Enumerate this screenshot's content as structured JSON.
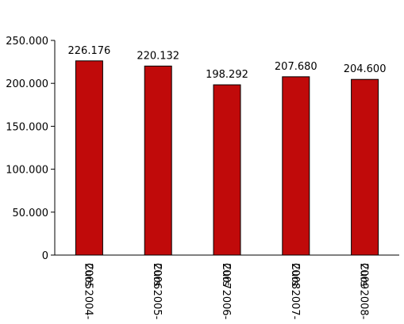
{
  "chart_data": {
    "type": "bar",
    "categories": [
      "Curs 2004-2005",
      "Curs 2005-2006",
      "Curs 2006-2007",
      "Curs 2007-2008",
      "Curs 2008-2009"
    ],
    "category_lines": [
      [
        "Curs 2004-",
        "2005"
      ],
      [
        "Curs 2005-",
        "2006"
      ],
      [
        "Curs 2006-",
        "2007"
      ],
      [
        "Curs 2007-",
        "2008"
      ],
      [
        "Curs 2008-",
        "2009"
      ]
    ],
    "values": [
      226176,
      220132,
      198292,
      207680,
      204600
    ],
    "data_labels": [
      "226.176",
      "220.132",
      "198.292",
      "207.680",
      "204.600"
    ],
    "y_ticks": [
      0,
      50000,
      100000,
      150000,
      200000,
      250000
    ],
    "y_tick_labels": [
      "0",
      "50.000",
      "100.000",
      "150.000",
      "200.000",
      "250.000"
    ],
    "ylim": [
      0,
      250000
    ],
    "title": "",
    "xlabel": "",
    "ylabel": "",
    "grid": false,
    "bar_color": "#c00a0a",
    "bar_border_color": "#000000"
  }
}
